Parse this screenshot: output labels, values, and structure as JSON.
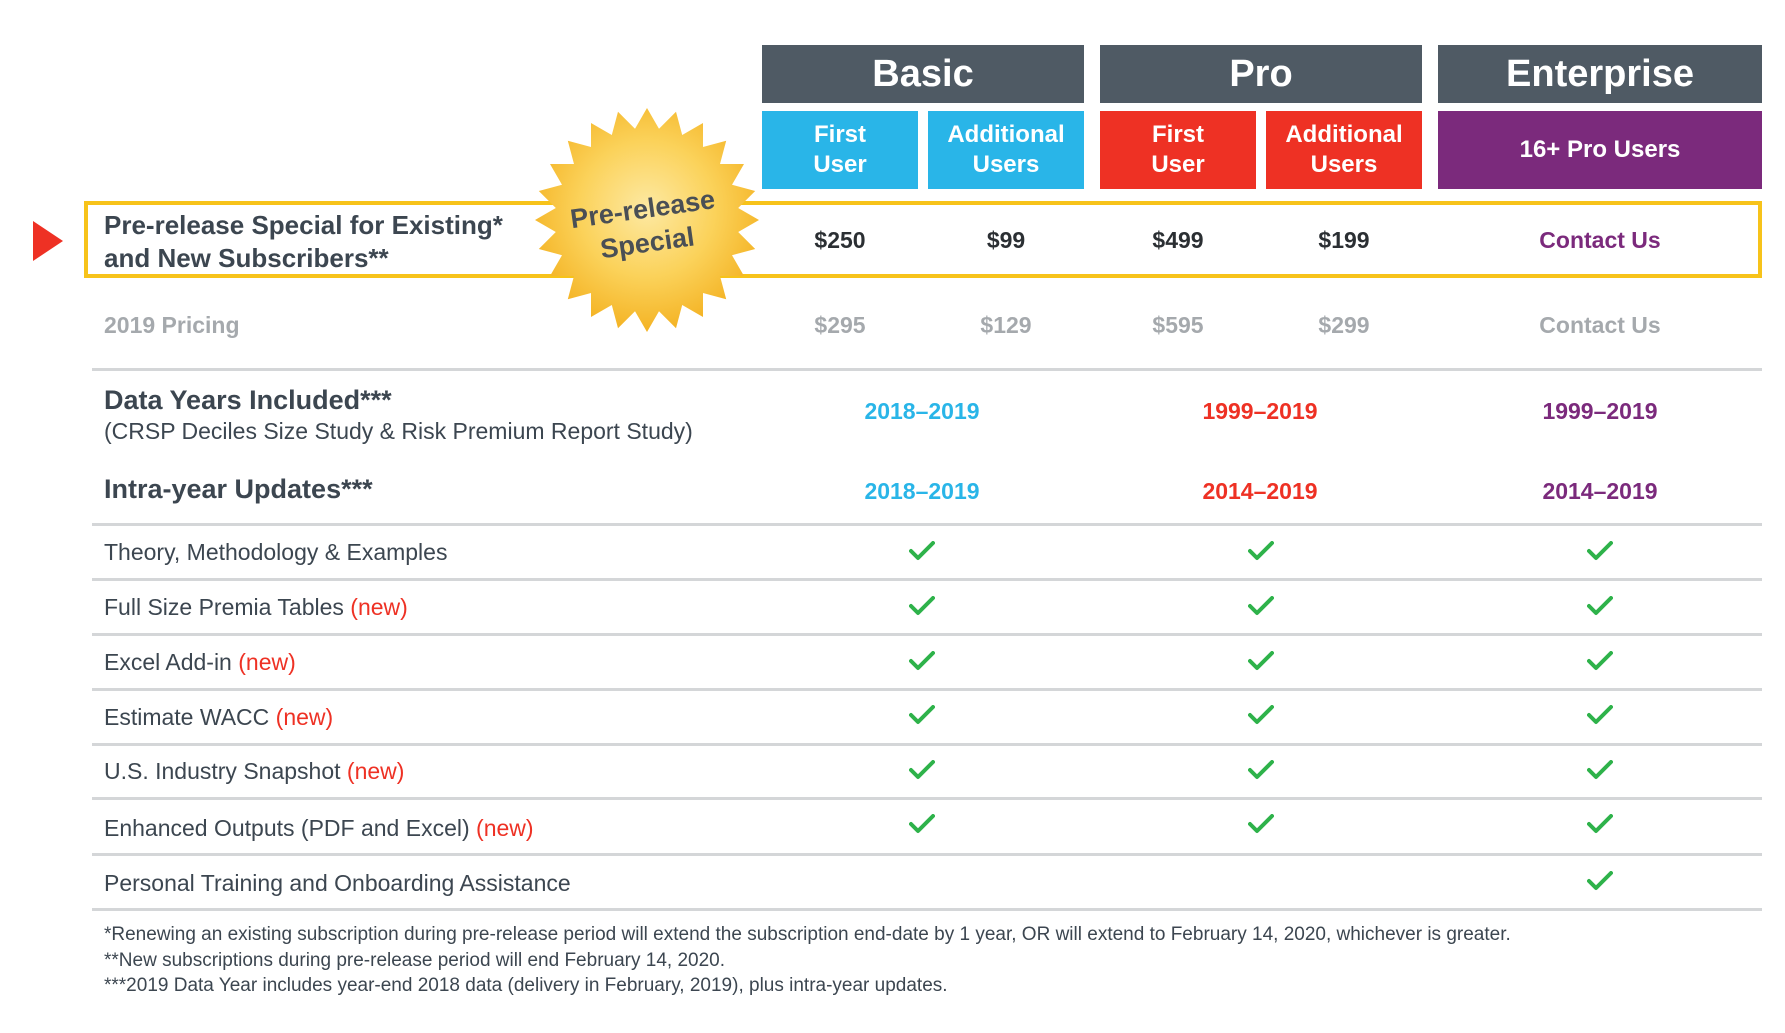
{
  "tiers": {
    "basic": {
      "name": "Basic",
      "first": "First\nUser",
      "additional": "Additional\nUsers"
    },
    "pro": {
      "name": "Pro",
      "first": "First\nUser",
      "additional": "Additional\nUsers"
    },
    "enterprise": {
      "name": "Enterprise",
      "sub": "16+ Pro Users"
    }
  },
  "special": {
    "label_line1": "Pre-release Special for Existing*",
    "label_line2": "and New Subscribers**",
    "badge_line1": "Pre-release",
    "badge_line2": "Special",
    "prices": [
      "$250",
      "$99",
      "$499",
      "$199",
      "Contact Us"
    ]
  },
  "pricing_2019": {
    "label": "2019 Pricing",
    "prices": [
      "$295",
      "$129",
      "$595",
      "$299",
      "Contact Us"
    ]
  },
  "data_years": {
    "title": "Data Years Included***",
    "subtitle": "(CRSP Deciles Size Study & Risk Premium Report Study)",
    "basic": "2018–2019",
    "pro": "1999–2019",
    "enterprise": "1999–2019"
  },
  "intra_year": {
    "title": "Intra-year Updates***",
    "basic": "2018–2019",
    "pro": "2014–2019",
    "enterprise": "2014–2019"
  },
  "features": [
    {
      "label": "Theory, Methodology & Examples",
      "new": "",
      "basic": true,
      "pro": true,
      "enterprise": true
    },
    {
      "label": "Full Size Premia Tables",
      "new": "(new)",
      "basic": true,
      "pro": true,
      "enterprise": true
    },
    {
      "label": "Excel Add-in",
      "new": "(new)",
      "basic": true,
      "pro": true,
      "enterprise": true
    },
    {
      "label": "Estimate WACC",
      "new": "(new)",
      "basic": true,
      "pro": true,
      "enterprise": true
    },
    {
      "label": "U.S. Industry Snapshot",
      "new": "(new)",
      "basic": true,
      "pro": true,
      "enterprise": true
    },
    {
      "label": "Enhanced Outputs (PDF and Excel)",
      "new": "(new)",
      "basic": true,
      "pro": true,
      "enterprise": true
    },
    {
      "label": "Personal Training and Onboarding Assistance",
      "new": "",
      "basic": false,
      "pro": false,
      "enterprise": true
    }
  ],
  "footnotes": [
    "*Renewing an existing subscription during pre-release period will extend the subscription end-date by 1 year, OR will extend to February 14, 2020, whichever is greater.",
    "**New subscriptions during pre-release period will end February 14, 2020.",
    "***2019 Data Year includes year-end 2018 data (delivery in February, 2019), plus intra-year updates."
  ],
  "colors": {
    "basic": "#29b5e8",
    "pro": "#ee3124",
    "enterprise": "#7b2a7c",
    "header": "#4f5a64",
    "highlight": "#f7c31a",
    "check": "#2eb24a"
  },
  "icons": {
    "check": "check-icon",
    "arrow": "triangle-pointer-icon",
    "badge": "starburst-badge"
  }
}
